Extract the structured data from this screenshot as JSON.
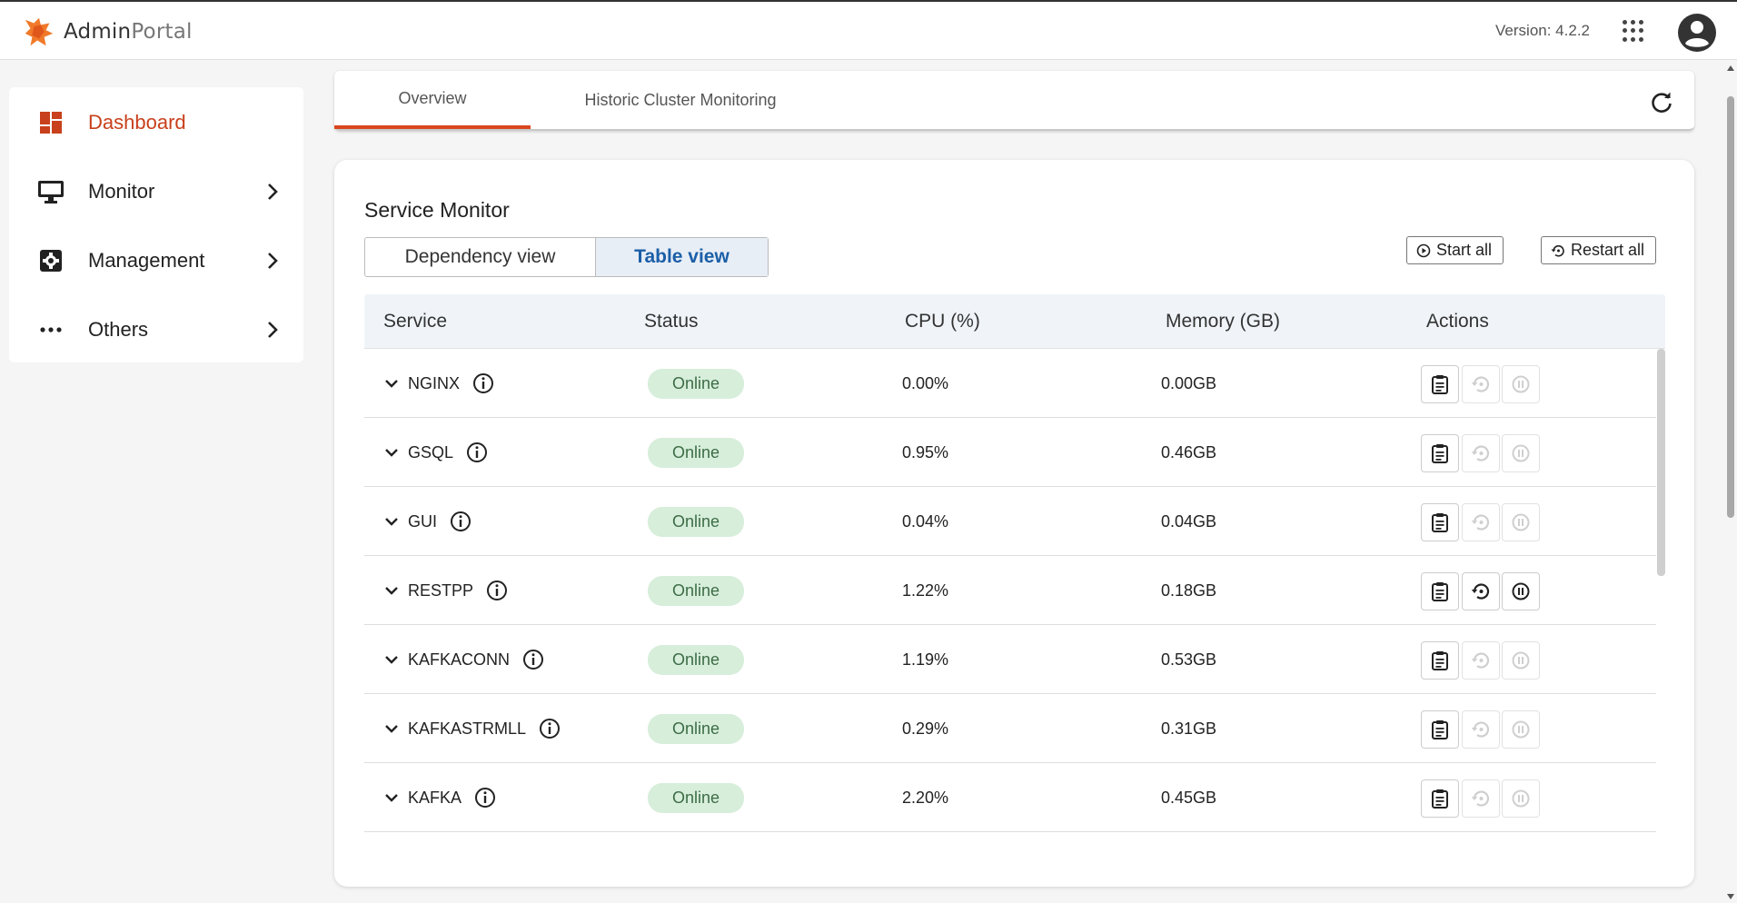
{
  "header": {
    "logo_a": "Admin",
    "logo_b": "Portal",
    "version": "Version: 4.2.2",
    "apps_icon": "apps-grid-icon",
    "avatar_icon": "account-circle-icon"
  },
  "sidebar": {
    "items": [
      {
        "label": "Dashboard",
        "icon": "dashboard-icon",
        "active": true
      },
      {
        "label": "Monitor",
        "icon": "monitor-icon",
        "has_submenu": true
      },
      {
        "label": "Management",
        "icon": "management-icon",
        "has_submenu": true
      },
      {
        "label": "Others",
        "icon": "more-horizontal-icon",
        "has_submenu": true
      }
    ]
  },
  "tabs": {
    "items": [
      {
        "label": "Overview",
        "active": true
      },
      {
        "label": "Historic Cluster Monitoring"
      }
    ],
    "refresh_icon": "refresh-icon"
  },
  "service_monitor": {
    "title": "Service Monitor",
    "views": {
      "dependency": "Dependency view",
      "table": "Table view",
      "selected": "table"
    },
    "start_all": "Start all",
    "restart_all": "Restart all",
    "columns": [
      "Service",
      "Status",
      "CPU (%)",
      "Memory (GB)",
      "Actions"
    ],
    "rows": [
      {
        "service": "NGINX",
        "status": "Online",
        "cpu": "0.00%",
        "memory": "0.00GB",
        "actions_enabled": false
      },
      {
        "service": "GSQL",
        "status": "Online",
        "cpu": "0.95%",
        "memory": "0.46GB",
        "actions_enabled": false
      },
      {
        "service": "GUI",
        "status": "Online",
        "cpu": "0.04%",
        "memory": "0.04GB",
        "actions_enabled": false
      },
      {
        "service": "RESTPP",
        "status": "Online",
        "cpu": "1.22%",
        "memory": "0.18GB",
        "actions_enabled": true
      },
      {
        "service": "KAFKACONN",
        "status": "Online",
        "cpu": "1.19%",
        "memory": "0.53GB",
        "actions_enabled": false
      },
      {
        "service": "KAFKASTRMLL",
        "status": "Online",
        "cpu": "0.29%",
        "memory": "0.31GB",
        "actions_enabled": false
      },
      {
        "service": "KAFKA",
        "status": "Online",
        "cpu": "2.20%",
        "memory": "0.45GB",
        "actions_enabled": false
      }
    ]
  },
  "colors": {
    "accent": "#d9461f",
    "online_bg": "#d7eedb",
    "selected_view": "#1b5fa8"
  }
}
